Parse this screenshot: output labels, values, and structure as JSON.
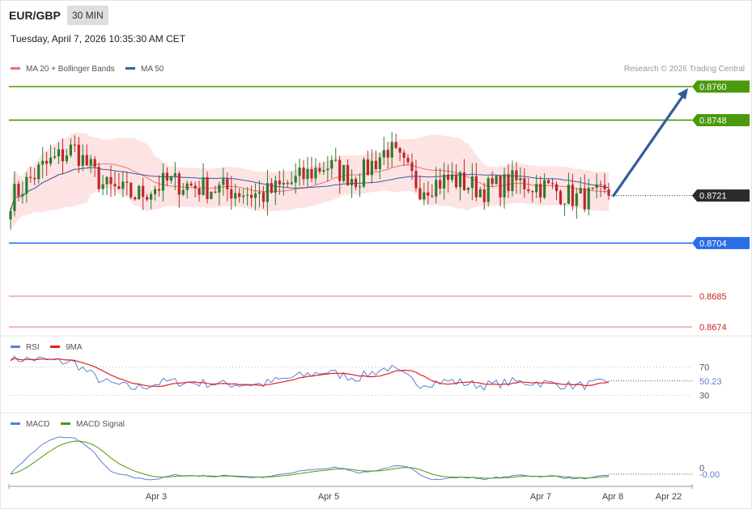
{
  "header": {
    "symbol": "EUR/GBP",
    "timeframe": "30 MIN",
    "datetime": "Tuesday, April 7, 2026 10:35:30 AM CET"
  },
  "legend": {
    "ma20_label": "MA 20 + Bollinger Bands",
    "ma50_label": "MA 50",
    "copyright": "Research © 2026 Trading Central",
    "rsi_label": "RSI",
    "rsi_ma_label": "9MA",
    "macd_label": "MACD",
    "macd_signal_label": "MACD Signal"
  },
  "colors": {
    "resistance": "#4a9a0c",
    "support": "#2a6ee8",
    "target_support": "#e05050",
    "price_tag": "#2b2b2b",
    "arrow": "#2f5d9c",
    "ma20": "#f07070",
    "ma50": "#3a5ea0",
    "bollinger_fill": "#fde3e3",
    "rsi": "#5a80d8",
    "rsi_ma": "#dd2222",
    "macd": "#5a80d8",
    "macd_signal": "#4a9a0c",
    "candle_up": "#2a7d2e",
    "candle_down": "#c0262b"
  },
  "chart_data": [
    {
      "type": "candlestick",
      "title": "EUR/GBP",
      "timeframe": "30 MIN",
      "x_tick_labels": [
        "Apr 3",
        "Apr 5",
        "Apr 7",
        "Apr 8",
        "Apr 22"
      ],
      "ylim": [
        0.8666,
        0.8762
      ],
      "last_price": 0.8721,
      "levels": [
        {
          "value": 0.876,
          "label": "0.8760",
          "kind": "resistance"
        },
        {
          "value": 0.8748,
          "label": "0.8748",
          "kind": "resistance"
        },
        {
          "value": 0.8721,
          "label": "0.8721",
          "kind": "last"
        },
        {
          "value": 0.8704,
          "label": "0.8704",
          "kind": "support"
        },
        {
          "value": 0.8685,
          "label": "0.8685",
          "kind": "target"
        },
        {
          "value": 0.8674,
          "label": "0.8674",
          "kind": "target"
        }
      ],
      "projection": {
        "from": 0.8721,
        "to": 0.876
      },
      "series": [
        {
          "name": "MA 20 + Bollinger Bands"
        },
        {
          "name": "MA 50"
        }
      ],
      "close_path": [
        0.872,
        0.8731,
        0.8738,
        0.8724,
        0.8721,
        0.8726,
        0.8724,
        0.8723,
        0.8721,
        0.8726,
        0.8732,
        0.8727,
        0.8738,
        0.8724,
        0.8727,
        0.8723,
        0.8726,
        0.8724,
        0.872,
        0.8721
      ],
      "close_path_note": "approximate closes sampled evenly across the visible bars"
    },
    {
      "type": "line",
      "series": [
        {
          "name": "RSI"
        },
        {
          "name": "9MA"
        }
      ],
      "reference_lines": [
        70,
        30
      ],
      "last_value": 50.23,
      "last_label": "50.23",
      "tick_labels": [
        "70",
        "30"
      ]
    },
    {
      "type": "line",
      "series": [
        {
          "name": "MACD"
        },
        {
          "name": "MACD Signal"
        }
      ],
      "zero_label": "0",
      "last_value": -0.0,
      "last_label": "-0.00"
    }
  ]
}
